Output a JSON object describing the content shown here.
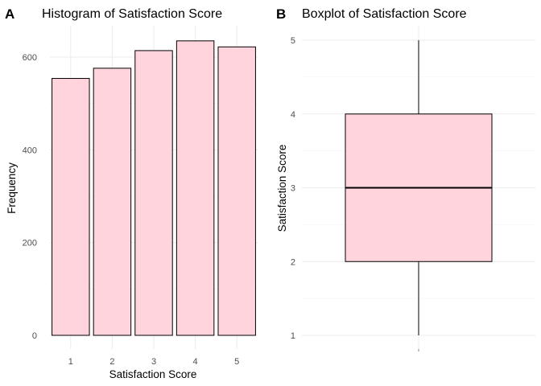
{
  "chart_data": [
    {
      "panel_tag": "A",
      "type": "bar",
      "title": "Histogram of Satisfaction Score",
      "xlabel": "Satisfaction Score",
      "ylabel": "Frequency",
      "categories": [
        "1",
        "2",
        "3",
        "4",
        "5"
      ],
      "values": [
        554,
        576,
        614,
        635,
        622
      ],
      "ylim": [
        0,
        650
      ],
      "yticks": [
        0,
        200,
        400,
        600
      ],
      "fill_color": "#ffd4dc",
      "stroke_color": "#000000",
      "grid": true
    },
    {
      "panel_tag": "B",
      "type": "box",
      "title": "Boxplot of Satisfaction Score",
      "ylabel": "Satisfaction Score",
      "ylim": [
        1,
        5
      ],
      "yticks": [
        1,
        2,
        3,
        4,
        5
      ],
      "box": {
        "min": 1,
        "q1": 2,
        "median": 3,
        "q3": 4,
        "max": 5
      },
      "fill_color": "#ffd4dc",
      "stroke_color": "#000000",
      "grid": true
    }
  ]
}
